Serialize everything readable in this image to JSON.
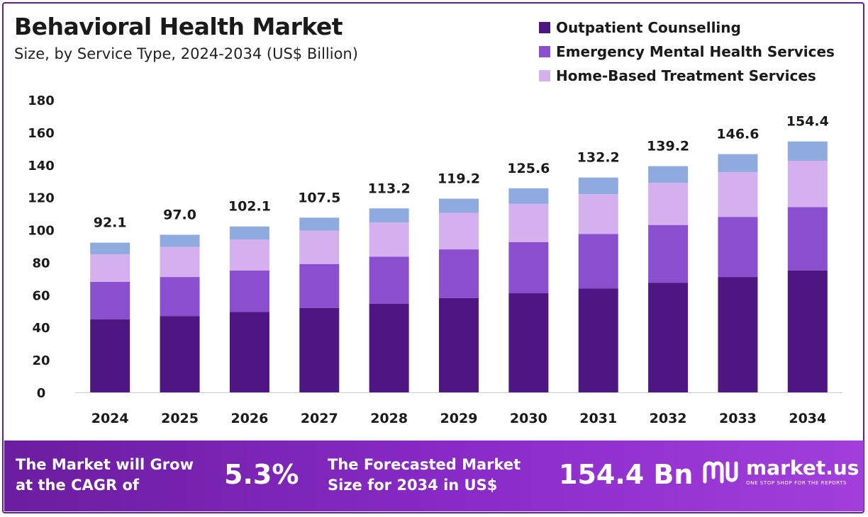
{
  "header": {
    "title": "Behavioral Health Market",
    "subtitle": "Size, by Service Type, 2024-2034 (US$ Billion)"
  },
  "legend": [
    {
      "label": "Outpatient Counselling",
      "color": "#4e1682"
    },
    {
      "label": "Emergency Mental Health Services",
      "color": "#8a4fcf"
    },
    {
      "label": "Home-Based Treatment Services",
      "color": "#d5b0ee"
    }
  ],
  "chart_data": {
    "type": "bar",
    "stacked": true,
    "categories": [
      "2024",
      "2025",
      "2026",
      "2027",
      "2028",
      "2029",
      "2030",
      "2031",
      "2032",
      "2033",
      "2034"
    ],
    "series": [
      {
        "name": "Outpatient Counselling",
        "color": "#4e1682",
        "values": [
          45.0,
          47.0,
          49.5,
          52.0,
          54.5,
          58.0,
          61.0,
          64.0,
          67.5,
          71.0,
          75.0
        ]
      },
      {
        "name": "Emergency Mental Health Services",
        "color": "#8a4fcf",
        "values": [
          23.0,
          24.0,
          25.5,
          27.0,
          29.0,
          30.0,
          31.5,
          33.5,
          35.5,
          37.0,
          39.0
        ]
      },
      {
        "name": "Home-Based Treatment Services",
        "color": "#d5b0ee",
        "values": [
          17.0,
          18.5,
          19.0,
          20.5,
          21.0,
          22.5,
          23.5,
          24.5,
          26.0,
          27.5,
          28.5
        ]
      },
      {
        "color": "#8faadf",
        "values": [
          7.1,
          7.5,
          8.1,
          8.0,
          8.7,
          8.7,
          9.6,
          10.2,
          10.2,
          11.1,
          11.9
        ]
      }
    ],
    "totals": [
      92.1,
      97.0,
      102.1,
      107.5,
      113.2,
      119.2,
      125.6,
      132.2,
      139.2,
      146.6,
      154.4
    ],
    "total_labels": [
      "92.1",
      "97.0",
      "102.1",
      "107.5",
      "113.2",
      "119.2",
      "125.6",
      "132.2",
      "139.2",
      "146.6",
      "154.4"
    ],
    "ylim": [
      0,
      180
    ],
    "yticks": [
      0,
      20,
      40,
      60,
      80,
      100,
      120,
      140,
      160,
      180
    ],
    "grid": false,
    "legend_position": "top-right"
  },
  "footer": {
    "cagr_text_line1": "The Market will Grow",
    "cagr_text_line2": "at the CAGR of",
    "cagr_value": "5.3%",
    "forecast_text_line1": "The Forecasted Market",
    "forecast_text_line2": "Size for 2034 in US$",
    "forecast_value": "154.4 Bn",
    "brand_name": "market.us",
    "brand_tagline": "ONE STOP SHOP FOR THE REPORTS"
  },
  "colors": {
    "accent": "#6a1b9a",
    "footer_start": "#6b1d9f",
    "footer_end": "#a23fdc"
  }
}
